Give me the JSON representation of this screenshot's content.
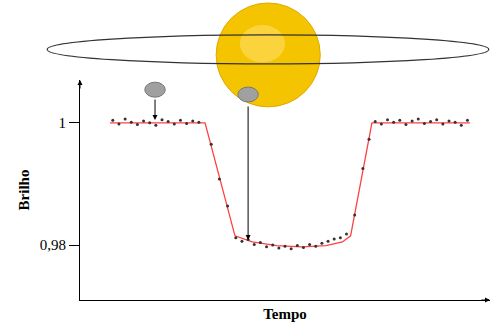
{
  "chart_data": {
    "type": "line",
    "xlabel": "Tempo",
    "ylabel": "Brilho",
    "xlim": [
      0,
      100
    ],
    "ylim": [
      0.971,
      1.007
    ],
    "yticks": [
      1,
      {
        "value": 0.98,
        "label": "0,98"
      }
    ],
    "tick_labels": "y",
    "grid": false,
    "series": [
      {
        "type": "scatter",
        "marker": "dot",
        "color": "#333333",
        "x": [
          8,
          9.5,
          11,
          12.5,
          14,
          15.5,
          17,
          18.5,
          20,
          21.5,
          23,
          24.5,
          26,
          27.5,
          29,
          32,
          34,
          36,
          38,
          39.5,
          41,
          42.5,
          44,
          45.5,
          47,
          48.5,
          50,
          51.5,
          53,
          54.5,
          56,
          57.5,
          59,
          60.5,
          62,
          63.5,
          65,
          67,
          69,
          70.5,
          72,
          73.5,
          75,
          76.5,
          78,
          79.5,
          81,
          82.5,
          84,
          85.5,
          87,
          88.5,
          90,
          91.5,
          93,
          94.5
        ],
        "values": [
          1.0004,
          0.9998,
          1.0006,
          1.0001,
          0.9997,
          1.0003,
          1.0,
          0.9996,
          1.0005,
          1.0002,
          0.9998,
          1.0004,
          0.9999,
          1.0003,
          1.0001,
          0.9965,
          0.9908,
          0.9864,
          0.9812,
          0.9806,
          0.9809,
          0.9801,
          0.9804,
          0.9797,
          0.98,
          0.9795,
          0.9798,
          0.9794,
          0.9799,
          0.9796,
          0.9801,
          0.9798,
          0.9803,
          0.9806,
          0.981,
          0.9812,
          0.9818,
          0.9849,
          0.9925,
          0.9973,
          1.0002,
          0.9998,
          1.0005,
          1.0001,
          1.0004,
          0.9997,
          1.0003,
          1.0006,
          0.9999,
          1.0002,
          1.0005,
          0.9998,
          1.0003,
          1.0001,
          0.9996,
          1.0004
        ]
      },
      {
        "type": "line",
        "line_style": "solid",
        "color": "#ff4040",
        "x": [
          7.3,
          30.5,
          37.8,
          42,
          48,
          54,
          60,
          64,
          66,
          71.2,
          95.1
        ],
        "values": [
          1.0,
          1.0,
          0.9815,
          0.9805,
          0.9799,
          0.9797,
          0.9799,
          0.9805,
          0.9815,
          1.0,
          1.0
        ]
      }
    ]
  }
}
